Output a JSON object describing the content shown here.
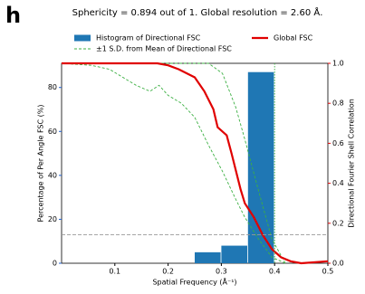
{
  "panel_label": "h",
  "chart_data": {
    "type": "combo",
    "title": "Sphericity = 0.894 out of 1. Global resolution = 2.60 Å.",
    "x_label": "Spatial Frequency (Å⁻¹)",
    "y_label": "Percentage of Per Angle FSC (%)",
    "y2_label": "Directional Fourier Shell Correlation",
    "xlim": [
      0,
      0.5
    ],
    "xticks": [
      0.1,
      0.2,
      0.3,
      0.4,
      0.5
    ],
    "ylim": [
      0,
      91
    ],
    "yticks": [
      0,
      20,
      40,
      60,
      80
    ],
    "y2lim": [
      0,
      1
    ],
    "y2ticks": [
      {
        "value": 0,
        "label": "0.0"
      },
      0.2,
      0.4,
      0.6,
      0.8,
      {
        "value": 1,
        "label": "1.0"
      }
    ],
    "y_color": "#1f5fd0",
    "y2_color": "#e00000",
    "series": [
      {
        "type": "histogram",
        "name": "Histogram of Directional FSC",
        "color": "#1f77b4",
        "bins": [
          0.25,
          0.3,
          0.35,
          0.4
        ],
        "values": [
          5,
          8,
          87
        ]
      },
      {
        "type": "band_lines",
        "name": "±1 S.D. from Mean of Directional FSC",
        "color": "#3cb043",
        "axis": "y2",
        "x": [
          0,
          0.056,
          0.09,
          0.14,
          0.166,
          0.183,
          0.2,
          0.225,
          0.25,
          0.276,
          0.302,
          0.327,
          0.344,
          0.37,
          0.395,
          0.42
        ],
        "lower": [
          1,
          0.99,
          0.97,
          0.89,
          0.86,
          0.89,
          0.84,
          0.8,
          0.73,
          0.59,
          0.46,
          0.32,
          0.23,
          0.12,
          0.03,
          0
        ],
        "upper": [
          1,
          1,
          1,
          1,
          1,
          1,
          1,
          1,
          1,
          1,
          0.95,
          0.78,
          0.62,
          0.36,
          0.12,
          0
        ]
      },
      {
        "type": "line",
        "name": "Global FSC",
        "color": "#e00000",
        "axis": "y2",
        "x": [
          0,
          0.18,
          0.2,
          0.22,
          0.25,
          0.268,
          0.285,
          0.293,
          0.31,
          0.319,
          0.336,
          0.344,
          0.361,
          0.378,
          0.395,
          0.412,
          0.43,
          0.45,
          0.5
        ],
        "values": [
          1,
          1,
          0.99,
          0.97,
          0.93,
          0.86,
          0.77,
          0.68,
          0.64,
          0.55,
          0.37,
          0.3,
          0.23,
          0.14,
          0.07,
          0.03,
          0.01,
          0,
          0.01
        ]
      }
    ],
    "reference_lines": [
      {
        "axis": "y2",
        "value": 0.143,
        "color": "#999999"
      },
      {
        "axis": "x",
        "value": 0.4,
        "color": "#3cb043"
      }
    ]
  }
}
